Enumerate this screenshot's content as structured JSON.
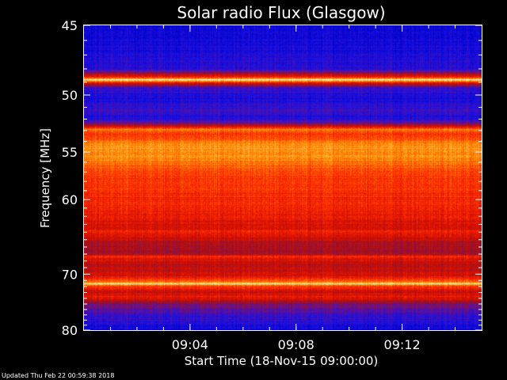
{
  "updated": "Updated Thu Feb 22 00:59:38 2018",
  "colors": {
    "background": "#000000",
    "axis": "#ffffff",
    "colormap": [
      "#0000c8",
      "#1a10e0",
      "#5a10a0",
      "#a01020",
      "#d81000",
      "#ff3000",
      "#ff8000",
      "#ffc040",
      "#ffffd8"
    ]
  },
  "chart_data": {
    "type": "heatmap",
    "title": "Solar radio Flux (Glasgow)",
    "xlabel": "Start Time (18-Nov-15 09:00:00)",
    "ylabel": "Frequency [MHz]",
    "x_ticks": [
      "09:04",
      "09:08",
      "09:12"
    ],
    "x_range": [
      "09:00:00",
      "09:15:00"
    ],
    "y_ticks": [
      45,
      50,
      55,
      60,
      70,
      80
    ],
    "y_range": [
      45,
      80
    ],
    "y_scale": "reciprocal",
    "grid": false,
    "intensity_profile": [
      {
        "freq": 45.0,
        "level": 0.05
      },
      {
        "freq": 46.5,
        "level": 0.1
      },
      {
        "freq": 48.0,
        "level": 0.15
      },
      {
        "freq": 48.6,
        "level": 0.6
      },
      {
        "freq": 48.8,
        "level": 0.98
      },
      {
        "freq": 49.0,
        "level": 0.55
      },
      {
        "freq": 49.4,
        "level": 0.18
      },
      {
        "freq": 50.3,
        "level": 0.1
      },
      {
        "freq": 51.2,
        "level": 0.2
      },
      {
        "freq": 52.0,
        "level": 0.12
      },
      {
        "freq": 52.6,
        "level": 0.45
      },
      {
        "freq": 52.9,
        "level": 0.75
      },
      {
        "freq": 53.3,
        "level": 0.62
      },
      {
        "freq": 54.5,
        "level": 0.8
      },
      {
        "freq": 55.5,
        "level": 0.78
      },
      {
        "freq": 57.0,
        "level": 0.65
      },
      {
        "freq": 59.5,
        "level": 0.6
      },
      {
        "freq": 62.0,
        "level": 0.55
      },
      {
        "freq": 63.5,
        "level": 0.48
      },
      {
        "freq": 64.0,
        "level": 0.58
      },
      {
        "freq": 65.5,
        "level": 0.4
      },
      {
        "freq": 67.0,
        "level": 0.38
      },
      {
        "freq": 67.3,
        "level": 0.58
      },
      {
        "freq": 68.5,
        "level": 0.42
      },
      {
        "freq": 70.5,
        "level": 0.52
      },
      {
        "freq": 71.3,
        "level": 0.72
      },
      {
        "freq": 71.6,
        "level": 0.95
      },
      {
        "freq": 71.9,
        "level": 0.65
      },
      {
        "freq": 73.0,
        "level": 0.45
      },
      {
        "freq": 73.7,
        "level": 0.55
      },
      {
        "freq": 75.0,
        "level": 0.32
      },
      {
        "freq": 77.0,
        "level": 0.2
      },
      {
        "freq": 79.0,
        "level": 0.12
      },
      {
        "freq": 80.0,
        "level": 0.06
      }
    ]
  }
}
